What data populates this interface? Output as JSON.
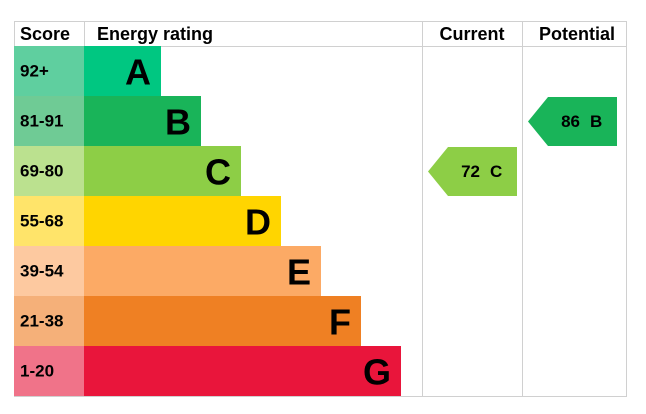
{
  "header": {
    "score": "Score",
    "rating": "Energy rating",
    "current": "Current",
    "potential": "Potential"
  },
  "rows": [
    {
      "score": "92+",
      "band": "A"
    },
    {
      "score": "81-91",
      "band": "B"
    },
    {
      "score": "69-80",
      "band": "C"
    },
    {
      "score": "55-68",
      "band": "D"
    },
    {
      "score": "39-54",
      "band": "E"
    },
    {
      "score": "21-38",
      "band": "F"
    },
    {
      "score": "1-20",
      "band": "G"
    }
  ],
  "current": {
    "value": 72,
    "band": "C"
  },
  "potential": {
    "value": 86,
    "band": "B"
  }
}
